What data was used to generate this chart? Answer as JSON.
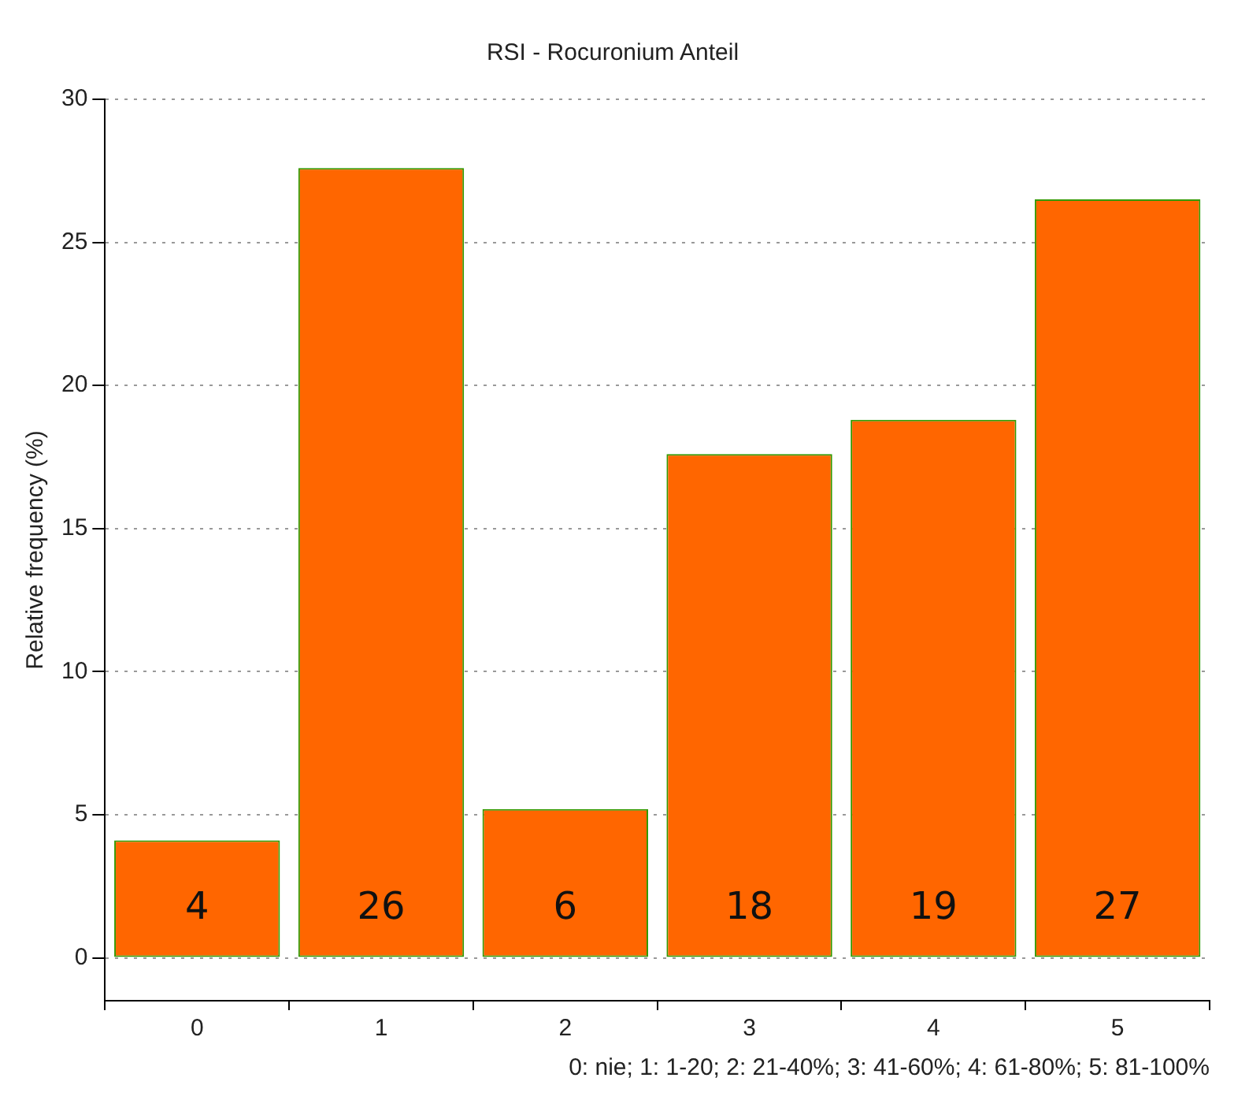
{
  "chart_data": {
    "type": "bar",
    "title": "RSI - Rocuronium Anteil",
    "ylabel": "Relative frequency (%)",
    "categories": [
      "0",
      "1",
      "2",
      "3",
      "4",
      "5"
    ],
    "values": [
      4.1,
      27.6,
      5.2,
      17.6,
      18.8,
      26.5
    ],
    "color": "#ff6600",
    "ylim": [
      -1.5,
      30
    ],
    "yticks": [
      0,
      5,
      10,
      15,
      20,
      25,
      30
    ],
    "grid": "y",
    "legend": false,
    "annotations": [
      "0: nie; 1: 1-20; 2: 21-40%; 3: 41-60%; 4: 61-80%; 5: 81-100%",
      "4",
      "26",
      "6",
      "18",
      "19",
      "27"
    ]
  }
}
